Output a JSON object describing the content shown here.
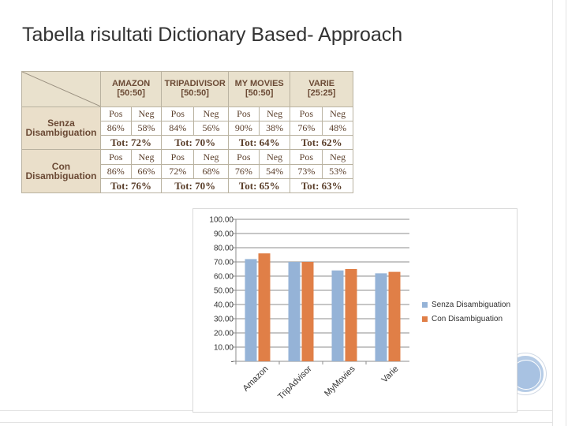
{
  "slide": {
    "title": "Tabella risultati Dictionary Based- Approach"
  },
  "results_table": {
    "columns": [
      {
        "name": "AMAZON",
        "ratio": "[50:50]"
      },
      {
        "name": "TRIPADIVISOR",
        "ratio": "[50:50]"
      },
      {
        "name": "MY MOVIES",
        "ratio": "[50:50]"
      },
      {
        "name": "VARIE",
        "ratio": "[25:25]"
      }
    ],
    "pos_label": "Pos",
    "neg_label": "Neg",
    "rows": [
      {
        "label_line1": "Senza",
        "label_line2": "Disambiguation",
        "values": [
          {
            "pos": "86%",
            "neg": "58%",
            "tot": "Tot: 72%"
          },
          {
            "pos": "84%",
            "neg": "56%",
            "tot": "Tot: 70%"
          },
          {
            "pos": "90%",
            "neg": "38%",
            "tot": "Tot: 64%"
          },
          {
            "pos": "76%",
            "neg": "48%",
            "tot": "Tot: 62%"
          }
        ]
      },
      {
        "label_line1": "Con",
        "label_line2": "Disambiguation",
        "values": [
          {
            "pos": "86%",
            "neg": "66%",
            "tot": "Tot: 76%"
          },
          {
            "pos": "72%",
            "neg": "68%",
            "tot": "Tot: 70%"
          },
          {
            "pos": "76%",
            "neg": "54%",
            "tot": "Tot: 65%"
          },
          {
            "pos": "73%",
            "neg": "53%",
            "tot": "Tot: 63%"
          }
        ]
      }
    ]
  },
  "chart_data": {
    "type": "bar",
    "title": "",
    "xlabel": "",
    "ylabel": "",
    "categories": [
      "Amazon",
      "TripAdvisor",
      "MyMovies",
      "Varie"
    ],
    "series": [
      {
        "name": "Senza Disambiguation",
        "values": [
          72,
          70,
          64,
          62
        ],
        "color": "#95b3d7"
      },
      {
        "name": "Con Disambiguation",
        "values": [
          76,
          70,
          65,
          63
        ],
        "color": "#e07f47"
      }
    ],
    "ylim": [
      0,
      100
    ],
    "y_ticks": [
      "-",
      "10.00",
      "20.00",
      "30.00",
      "40.00",
      "50.00",
      "60.00",
      "70.00",
      "80.00",
      "90.00",
      "100.00"
    ],
    "grid": true,
    "legend_position": "right"
  }
}
